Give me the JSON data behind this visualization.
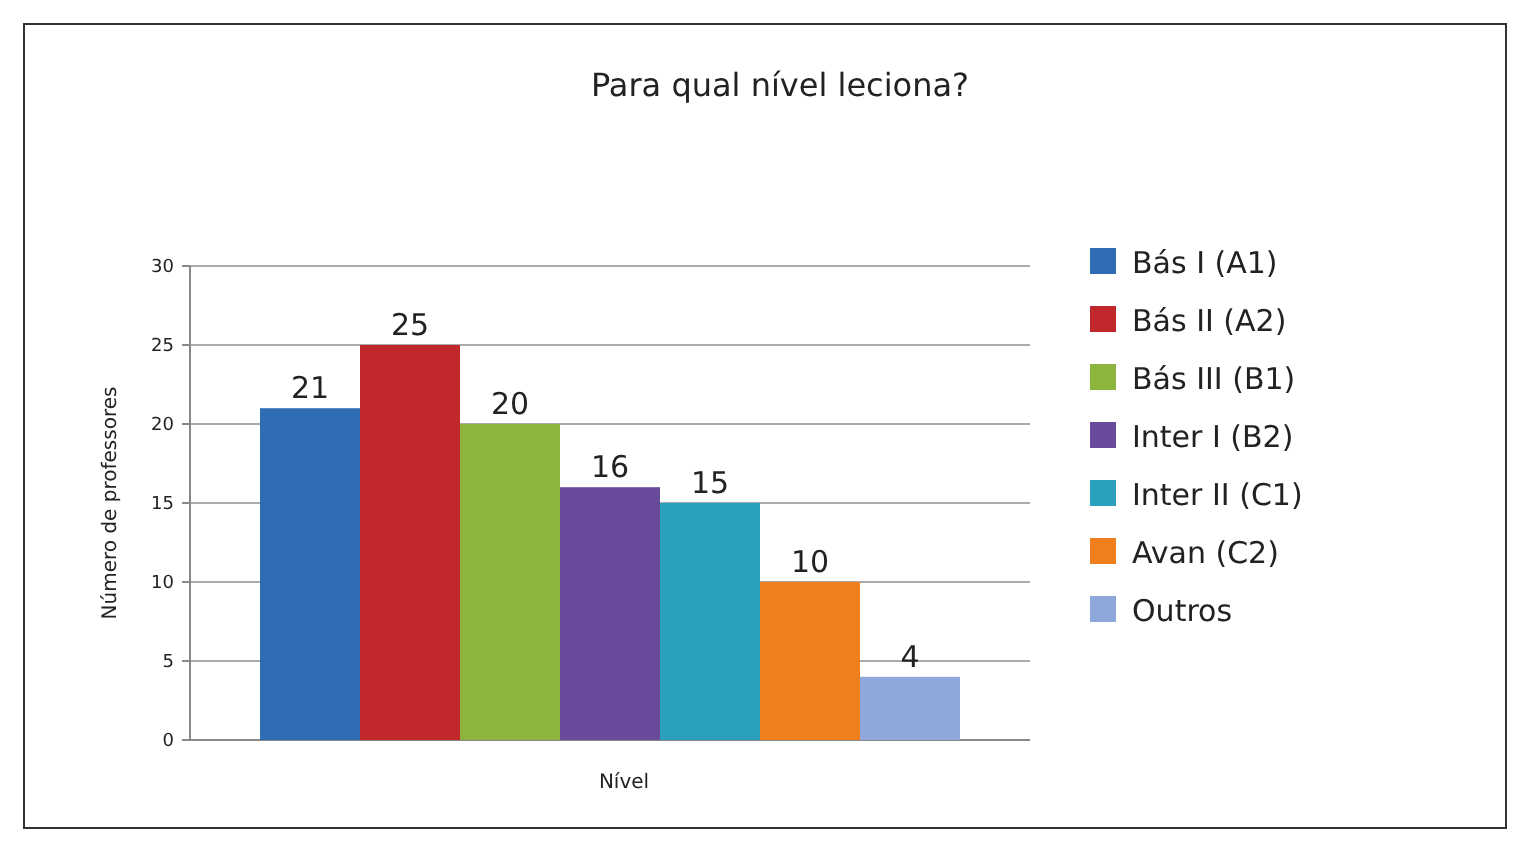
{
  "chart_data": {
    "type": "bar",
    "title": "Para qual nível leciona?",
    "xlabel": "Nível",
    "ylabel": "Número de professores",
    "categories": [
      null
    ],
    "series": [
      {
        "name": "Bás I (A1)",
        "color": "#2e6db4",
        "values": [
          21
        ]
      },
      {
        "name": "Bás II (A2)",
        "color": "#c0282b",
        "values": [
          25
        ]
      },
      {
        "name": "Bás III (B1)",
        "color": "#8db43c",
        "values": [
          20
        ]
      },
      {
        "name": "Inter I (B2)",
        "color": "#6a4a9c",
        "values": [
          16
        ]
      },
      {
        "name": "Inter II (C1)",
        "color": "#2aa0bd",
        "values": [
          15
        ]
      },
      {
        "name": "Avan (C2)",
        "color": "#ee7e1e",
        "values": [
          10
        ]
      },
      {
        "name": "Outros",
        "color": "#8fa8db",
        "values": [
          4
        ]
      }
    ],
    "ylim": [
      0,
      30
    ],
    "yticks": [
      0,
      5,
      10,
      15,
      20,
      25,
      30
    ],
    "grid": "y",
    "legend": "right",
    "data_labels": true
  }
}
